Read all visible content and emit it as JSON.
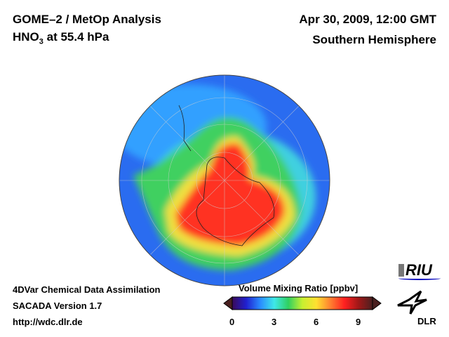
{
  "header": {
    "title": "GOME–2 / MetOp Analysis",
    "species_prefix": "HNO",
    "species_sub": "3",
    "species_suffix": " at 55.4 hPa",
    "datetime": "Apr 30, 2009, 12:00 GMT",
    "region": "Southern Hemisphere"
  },
  "footer": {
    "line1": "4DVar Chemical Data Assimilation",
    "line2": "SACADA Version 1.7",
    "url": "http://wdc.dlr.de"
  },
  "colorbar": {
    "title": "Volume Mixing Ratio [ppbv]",
    "min": 0,
    "max": 10,
    "ticks": [
      "0",
      "3",
      "6",
      "9"
    ],
    "colors": [
      "#3a0a5a",
      "#2020d0",
      "#2a8cff",
      "#3ee8e8",
      "#30d060",
      "#c8f030",
      "#ffe030",
      "#ff8030",
      "#ff2020",
      "#a01818",
      "#4a2020"
    ]
  },
  "logos": {
    "riu": "RIU",
    "dlr": "DLR"
  }
}
